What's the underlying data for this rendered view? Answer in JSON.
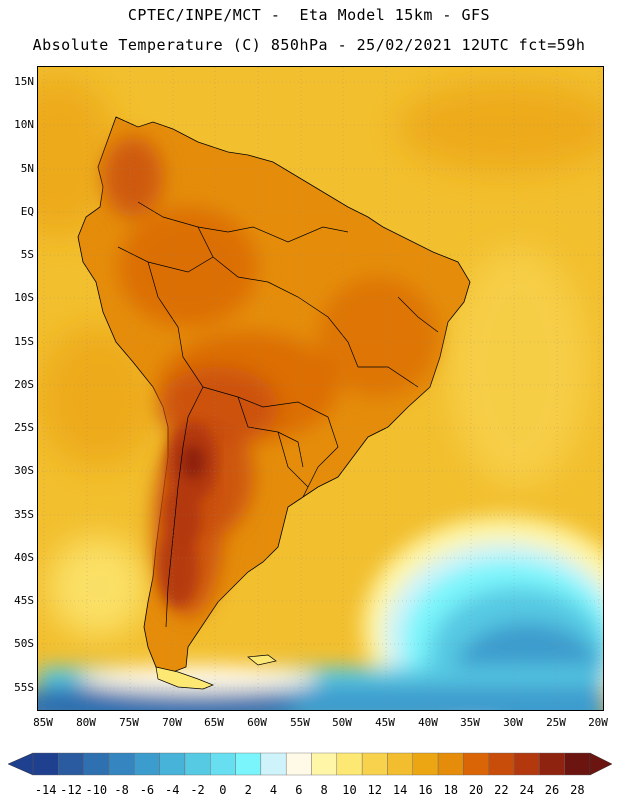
{
  "header": {
    "line1": "CPTEC/INPE/MCT -  Eta Model 15km - GFS",
    "line2": "Absolute Temperature (C) 850hPa - 25/02/2021 12UTC fct=59h"
  },
  "axes": {
    "lat_labels": [
      "15N",
      "10N",
      "5N",
      "EQ",
      "5S",
      "10S",
      "15S",
      "20S",
      "25S",
      "30S",
      "35S",
      "40S",
      "45S",
      "50S",
      "55S"
    ],
    "lon_labels": [
      "85W",
      "80W",
      "75W",
      "70W",
      "65W",
      "60W",
      "55W",
      "50W",
      "45W",
      "40W",
      "35W",
      "30W",
      "25W",
      "20W"
    ]
  },
  "colorbar": {
    "labels": [
      "-14",
      "-12",
      "-10",
      "-8",
      "-6",
      "-4",
      "-2",
      "0",
      "2",
      "4",
      "6",
      "8",
      "10",
      "12",
      "14",
      "16",
      "18",
      "20",
      "22",
      "24",
      "26",
      "28"
    ],
    "colors": [
      "#1f3f8f",
      "#2a5aa0",
      "#2f70b0",
      "#3585c0",
      "#3c9ccd",
      "#47b3d9",
      "#56c9e3",
      "#67dff0",
      "#7af5fb",
      "#cff3fb",
      "#fff9e8",
      "#fff6a8",
      "#fde874",
      "#f8d24d",
      "#f2bd2f",
      "#eca614",
      "#e58d0a",
      "#d96507",
      "#c94d0a",
      "#b3380e",
      "#8e2410",
      "#6b1410"
    ],
    "left_arrow_color": "#1f3f8f",
    "right_arrow_color": "#6b1410"
  },
  "map": {
    "background_color": "#f2bf2e",
    "land_warm_color": "#d9690a",
    "land_hot_color": "#b3380e",
    "cold_ocean_color": "#3c9ccd"
  }
}
